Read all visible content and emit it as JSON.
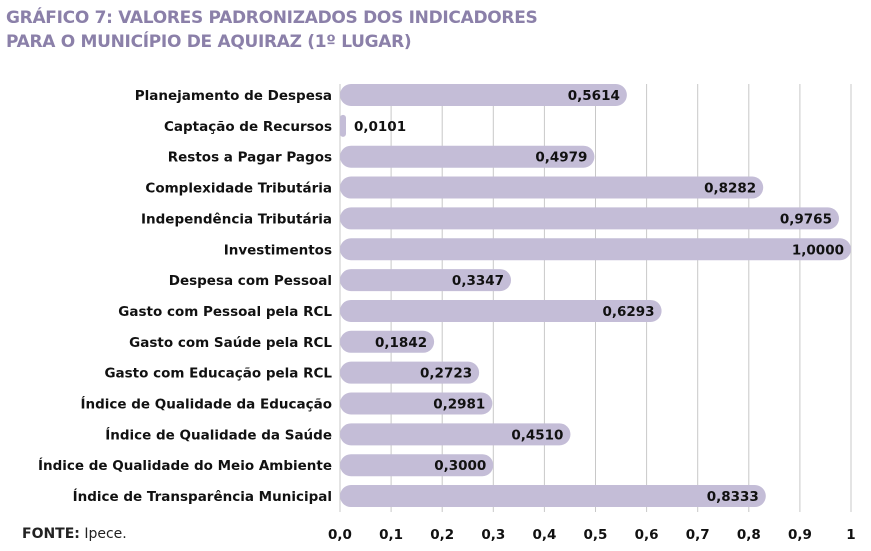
{
  "chart_data": {
    "type": "bar",
    "orientation": "horizontal",
    "title_line1": "GRÁFICO 7: VALORES PADRONIZADOS DOS INDICADORES",
    "title_line2": "PARA O MUNICÍPIO DE AQUIRAZ (1º LUGAR)",
    "categories": [
      "Planejamento de Despesa",
      "Captação de Recursos",
      "Restos a Pagar Pagos",
      "Complexidade Tributária",
      "Independência Tributária",
      "Investimentos",
      "Despesa com Pessoal",
      "Gasto com Pessoal pela RCL",
      "Gasto com Saúde pela RCL",
      "Gasto com Educação pela RCL",
      "Índice de Qualidade da Educação",
      "Índice de Qualidade da Saúde",
      "Índice de Qualidade do Meio Ambiente",
      "Índice de Transparência Municipal"
    ],
    "values": [
      0.5614,
      0.0101,
      0.4979,
      0.8282,
      0.9765,
      1.0,
      0.3347,
      0.6293,
      0.1842,
      0.2723,
      0.2981,
      0.451,
      0.3,
      0.8333
    ],
    "value_labels": [
      "0,5614",
      "0,0101",
      "0,4979",
      "0,8282",
      "0,9765",
      "1,0000",
      "0,3347",
      "0,6293",
      "0,1842",
      "0,2723",
      "0,2981",
      "0,4510",
      "0,3000",
      "0,8333"
    ],
    "xlim": [
      0,
      1
    ],
    "xticks": [
      "0,0",
      "0,1",
      "0,2",
      "0,3",
      "0,4",
      "0,5",
      "0,6",
      "0,7",
      "0,8",
      "0,9",
      "1"
    ],
    "grid": true,
    "bar_color": "#c4bdd7",
    "title_color": "#8b80a9"
  },
  "source": {
    "label": "FONTE:",
    "text": " Ipece."
  }
}
